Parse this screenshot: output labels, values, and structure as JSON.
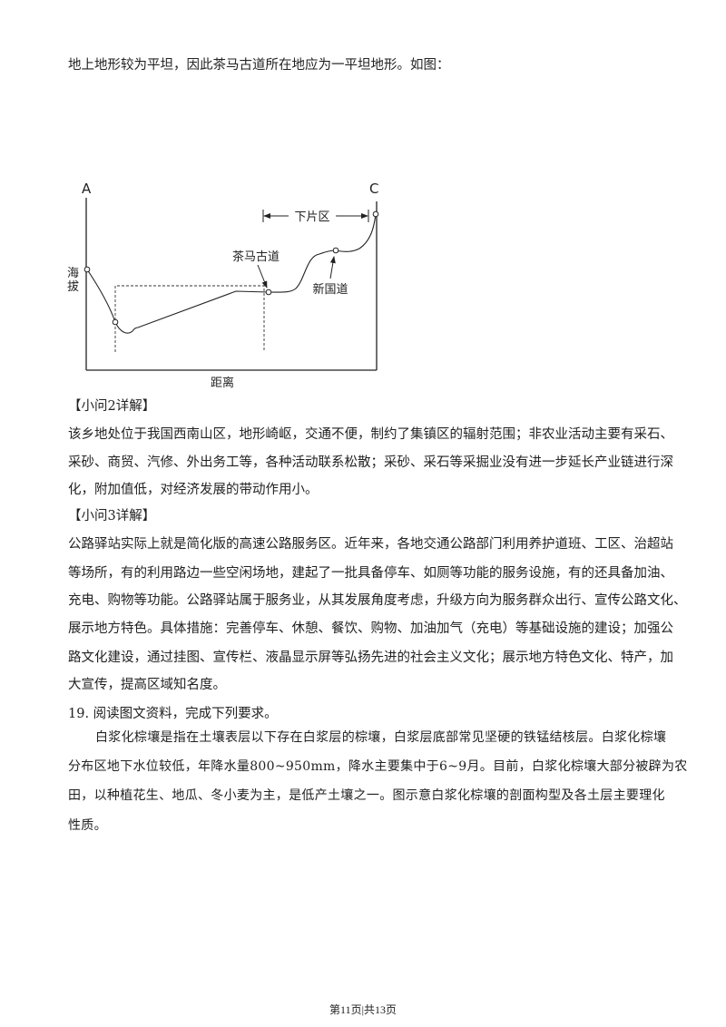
{
  "intro_line": "地上地形较为平坦，因此茶马古道所在地应为一平坦地形。如图：",
  "figure": {
    "label_a": "A",
    "label_c": "C",
    "y_axis_label": "海拔",
    "x_axis_label": "距离",
    "label_xiapian": "下片区",
    "label_chamagudao": "茶马古道",
    "label_xinguodao": "新国道"
  },
  "q2": {
    "heading": "【小问2详解】",
    "lines": [
      "该乡地处位于我国西南山区，地形崎岖，交通不便，制约了集镇区的辐射范围；非农业活动主要有采石、",
      "采砂、商贸、汽修、外出务工等，各种活动联系松散；采砂、采石等采掘业没有进一步延长产业链进行深",
      "化，附加值低，对经济发展的带动作用小。"
    ]
  },
  "q3": {
    "heading": "【小问3详解】",
    "lines": [
      "公路驿站实际上就是简化版的高速公路服务区。近年来，各地交通公路部门利用养护道班、工区、治超站",
      "等场所，有的利用路边一些空闲场地，建起了一批具备停车、如厕等功能的服务设施，有的还具备加油、",
      "充电、购物等功能。公路驿站属于服务业，从其发展角度考虑，升级方向为服务群众出行、宣传公路文化、",
      "展示地方特色。具体措施：完善停车、休憩、餐饮、购物、加油加气（充电）等基础设施的建设；加强公",
      "路文化建设，通过挂图、宣传栏、液晶显示屏等弘扬先进的社会主义文化；展示地方特色文化、特产，加",
      "大宣传，提高区域知名度。"
    ]
  },
  "q19": {
    "title": "19. 阅读图文资料，完成下列要求。",
    "lines": [
      "白浆化棕壤是指在土壤表层以下存在白浆层的棕壤，白浆层底部常见坚硬的铁锰结核层。白浆化棕壤",
      "分布区地下水位较低，年降水量800~950mm，降水主要集中于6~9月。目前，白浆化棕壤大部分被辟为农",
      "田，以种植花生、地瓜、冬小麦为主，是低产土壤之一。图示意白浆化棕壤的剖面构型及各土层主要理化",
      "性质。"
    ]
  },
  "footer": "第11页|共13页"
}
